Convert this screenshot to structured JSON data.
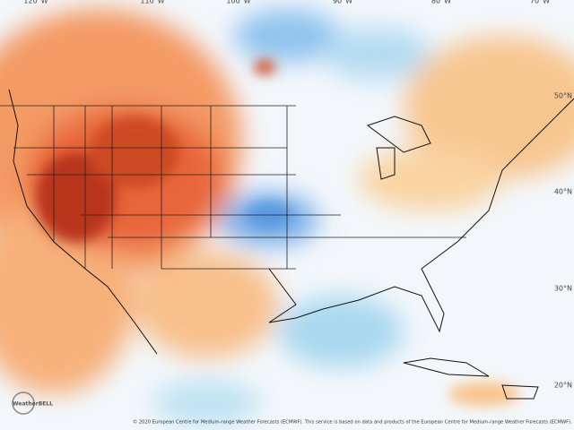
{
  "map": {
    "longitude_labels": [
      "120°W",
      "110°W",
      "100°W",
      "90°W",
      "80°W",
      "70°W"
    ],
    "latitude_labels": [
      "50°N",
      "40°N",
      "30°N",
      "20°N"
    ],
    "attribution": "© 2020 European Centre for Medium-range Weather Forecasts (ECMWF). This service is based on data and products of the European Centre for Medium-range Weather Forecasts (ECMWF).",
    "logo": "WeatherBELL"
  }
}
